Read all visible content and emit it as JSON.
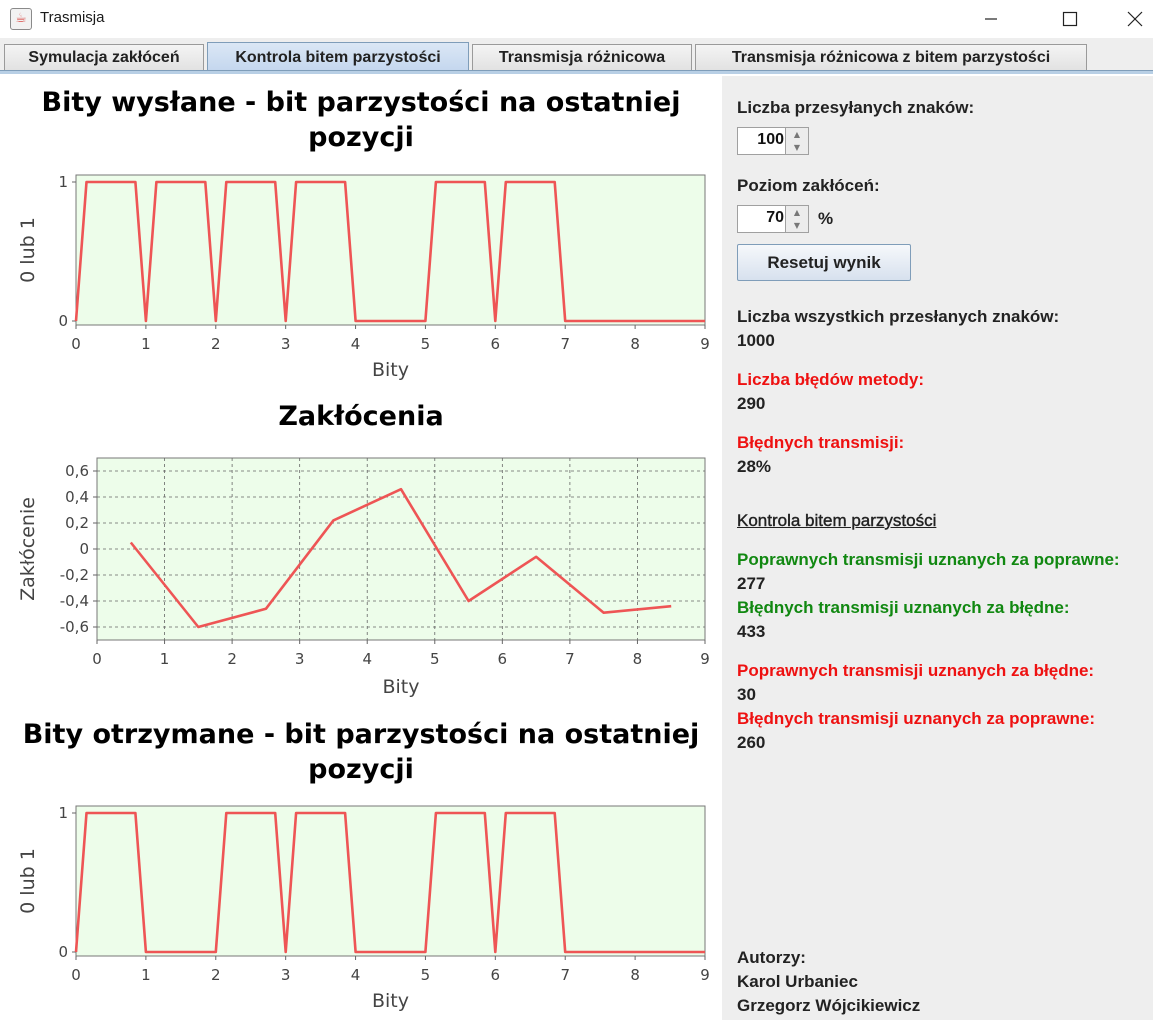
{
  "window": {
    "title": "Trasmisja"
  },
  "tabs": [
    {
      "label": "Symulacja zakłóceń"
    },
    {
      "label": "Kontrola bitem parzystości"
    },
    {
      "label": "Transmisja różnicowa"
    },
    {
      "label": "Transmisja różnicowa z bitem parzystości"
    }
  ],
  "controls": {
    "chars_label": "Liczba przesyłanych znaków:",
    "chars_value": "100",
    "noise_label": "Poziom zakłóceń:",
    "noise_value": "70",
    "noise_unit": "%",
    "reset_button": "Resetuj wynik"
  },
  "stats": {
    "total_label": "Liczba wszystkich przesłanych znaków:",
    "total_value": "1000",
    "errors_label": "Liczba błędów metody:",
    "errors_value": "290",
    "bad_label": "Błędnych transmisji:",
    "bad_value": "28%",
    "section_title": "Kontrola bitem parzystości",
    "cc_label": "Poprawnych transmisji uznanych za poprawne:",
    "cc_value": "277",
    "bb_label": "Błędnych transmisji uznanych za błędne:",
    "bb_value": "433",
    "cb_label": "Poprawnych transmisji uznanych za błędne:",
    "cb_value": "30",
    "bc_label": "Błędnych transmisji uznanych za poprawne:",
    "bc_value": "260"
  },
  "authors": {
    "label": "Autorzy:",
    "name1": "Karol Urbaniec",
    "name2": "Grzegorz Wójcikiewicz"
  },
  "chart_data": [
    {
      "type": "line",
      "title": "Bity wysłane - bit parzystości na ostatniej pozycji",
      "xlabel": "Bity",
      "ylabel": "0 lub 1",
      "xlim": [
        0,
        9
      ],
      "ylim": [
        0,
        1
      ],
      "x_ticks": [
        "0",
        "1",
        "2",
        "3",
        "4",
        "5",
        "6",
        "7",
        "8",
        "9"
      ],
      "y_ticks": [
        "0",
        "1"
      ],
      "grid": false,
      "color": "#ee5555",
      "background": "#edfdea",
      "series": [
        {
          "x": [
            0,
            0.15,
            0.85,
            1.0,
            1.15,
            1.85,
            2.0,
            2.15,
            2.8,
            2.85,
            3.0,
            3.15,
            3.85,
            4.0,
            5.0,
            5.15,
            5.85,
            6.0,
            6.15,
            6.85,
            7.0,
            9.0
          ],
          "y": [
            0,
            1,
            1,
            0,
            1,
            1,
            0,
            1,
            1,
            1,
            0,
            1,
            1,
            0,
            0,
            1,
            1,
            0,
            1,
            1,
            0,
            0
          ]
        }
      ]
    },
    {
      "type": "line",
      "title": "Zakłócenia",
      "xlabel": "Bity",
      "ylabel": "Zakłócenie",
      "xlim": [
        0,
        9
      ],
      "ylim": [
        -0.7,
        0.7
      ],
      "x_ticks": [
        "0",
        "1",
        "2",
        "3",
        "4",
        "5",
        "6",
        "7",
        "8",
        "9"
      ],
      "y_ticks": [
        "0,6",
        "0,4",
        "0,2",
        "0",
        "-0,2",
        "-0,4",
        "-0,6"
      ],
      "y_tick_values": [
        0.6,
        0.4,
        0.2,
        0,
        -0.2,
        -0.4,
        -0.6
      ],
      "grid": true,
      "color": "#ee5555",
      "background": "#edfdea",
      "series": [
        {
          "x": [
            0.5,
            1.5,
            2.5,
            3.5,
            4.5,
            5.5,
            6.5,
            7.5,
            8.5
          ],
          "y": [
            0.05,
            -0.6,
            -0.46,
            0.22,
            0.46,
            -0.4,
            -0.06,
            -0.49,
            -0.44
          ]
        }
      ]
    },
    {
      "type": "line",
      "title": "Bity otrzymane - bit parzystości na ostatniej pozycji",
      "xlabel": "Bity",
      "ylabel": "0 lub 1",
      "xlim": [
        0,
        9
      ],
      "ylim": [
        0,
        1
      ],
      "x_ticks": [
        "0",
        "1",
        "2",
        "3",
        "4",
        "5",
        "6",
        "7",
        "8",
        "9"
      ],
      "y_ticks": [
        "0",
        "1"
      ],
      "grid": false,
      "color": "#ee5555",
      "background": "#edfdea",
      "series": [
        {
          "x": [
            0,
            0.15,
            0.85,
            1.0,
            2.0,
            2.15,
            2.8,
            2.85,
            3.0,
            3.15,
            3.85,
            4.0,
            5.0,
            5.15,
            5.85,
            6.0,
            6.15,
            6.85,
            7.0,
            9.0
          ],
          "y": [
            0,
            1,
            1,
            0,
            0,
            1,
            1,
            1,
            0,
            1,
            1,
            0,
            0,
            1,
            1,
            0,
            1,
            1,
            0,
            0
          ]
        }
      ]
    }
  ]
}
